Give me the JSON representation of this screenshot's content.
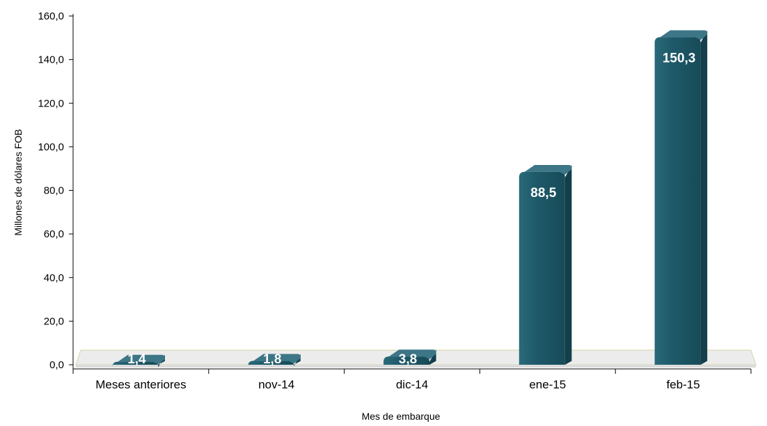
{
  "chart_data": {
    "type": "bar",
    "categories": [
      "Meses anteriores",
      "nov-14",
      "dic-14",
      "ene-15",
      "feb-15"
    ],
    "values": [
      1.4,
      1.8,
      3.8,
      88.5,
      150.3
    ],
    "value_labels": [
      "1,4",
      "1,8",
      "3,8",
      "88,5",
      "150,3"
    ],
    "xlabel": "Mes de embarque",
    "ylabel": "Millones de dólares FOB",
    "ylim": [
      0,
      160
    ],
    "y_ticks": [
      0,
      20,
      40,
      60,
      80,
      100,
      120,
      140,
      160
    ],
    "y_tick_labels": [
      "0,0",
      "20,0",
      "40,0",
      "60,0",
      "80,0",
      "100,0",
      "120,0",
      "140,0",
      "160,0"
    ],
    "grid": false,
    "legend": "none",
    "colors": {
      "bar_front": "#1f5a6a",
      "bar_side": "#133f4b",
      "bar_top": "#3d7686",
      "floor": "#ececec",
      "floor_edge": "#d8d8a8"
    }
  }
}
